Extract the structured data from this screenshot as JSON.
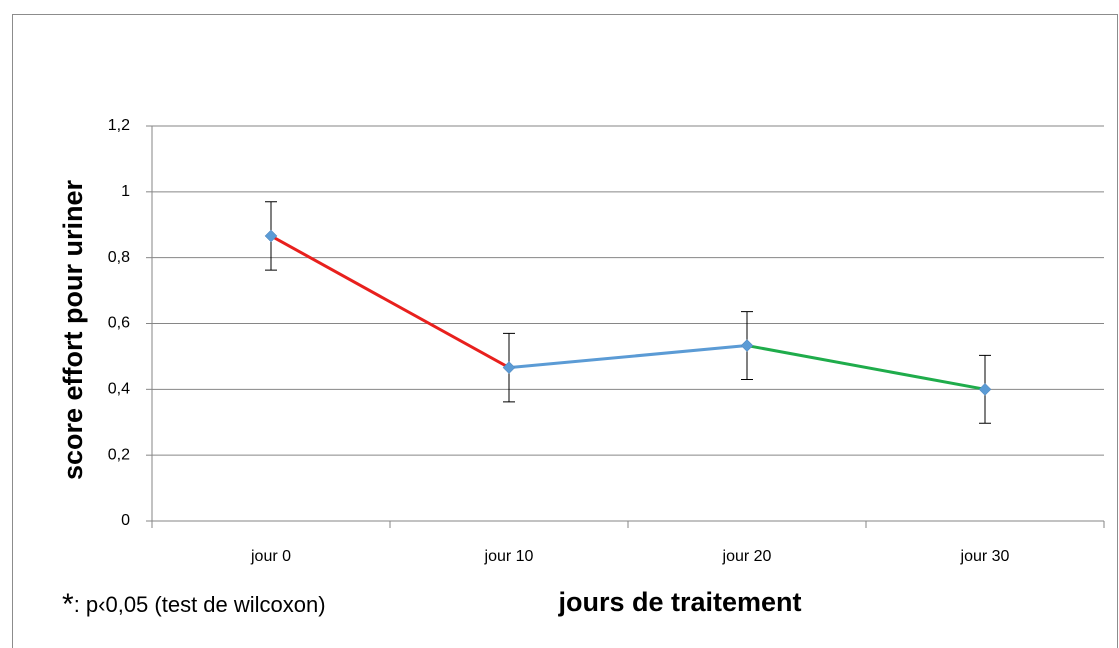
{
  "chart_data": {
    "type": "line",
    "y_label": "score effort pour uriner",
    "x_label": "jours de traitement",
    "annotation": {
      "marker": "*",
      "text": ": p‹0,05 (test de wilcoxon)"
    },
    "categories": [
      "jour 0",
      "jour 10",
      "jour 20",
      "jour 30"
    ],
    "series": [
      {
        "values": [
          0.866,
          0.466,
          0.533,
          0.4
        ],
        "errors": [
          0.104,
          0.104,
          0.103,
          0.103
        ],
        "color": "#5b9bd5",
        "segment_colors": [
          "#e8201d",
          "#5b9bd5",
          "#1fac4b"
        ]
      }
    ],
    "ylim": [
      0,
      1.2
    ],
    "yticks": [
      0,
      {
        "value": 0.2,
        "label": "0,2"
      },
      {
        "value": 0.4,
        "label": "0,4"
      },
      {
        "value": 0.6,
        "label": "0,6"
      },
      {
        "value": 0.8,
        "label": "0,8"
      },
      1,
      {
        "value": 1.2,
        "label": "1,2"
      }
    ],
    "grid": true
  }
}
